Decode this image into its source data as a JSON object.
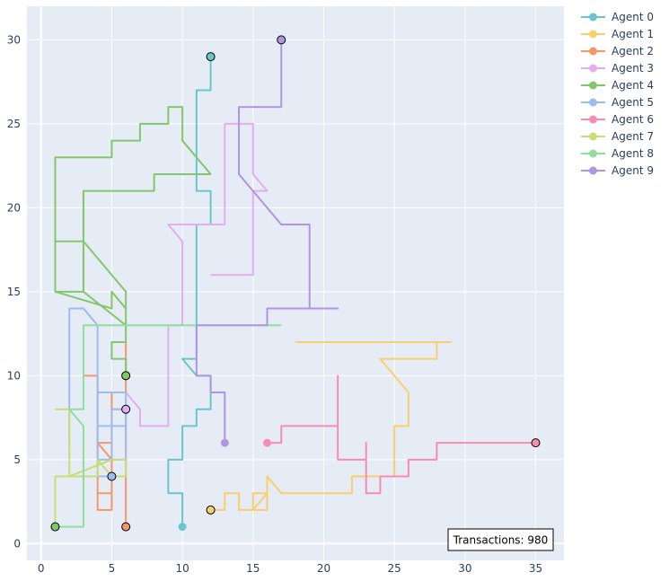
{
  "chart_data": {
    "type": "line",
    "title": "",
    "xlabel": "",
    "ylabel": "",
    "xlim": [
      -1,
      37
    ],
    "ylim": [
      -1,
      32
    ],
    "x_ticks": [
      0,
      5,
      10,
      15,
      20,
      25,
      30,
      35
    ],
    "y_ticks": [
      0,
      5,
      10,
      15,
      20,
      25,
      30
    ],
    "grid": true,
    "legend_position": "top-right",
    "annotation": "Transactions: 980",
    "series": [
      {
        "name": "Agent 0",
        "color": "#6cc5cc",
        "x": [
          10,
          10,
          9,
          9,
          10,
          10,
          11,
          11,
          12,
          12,
          11,
          10,
          11,
          11,
          12,
          12,
          11,
          11,
          12,
          12
        ],
        "y": [
          1,
          3,
          3,
          5,
          5,
          7,
          7,
          8,
          8,
          10,
          10,
          11,
          11,
          19,
          19,
          21,
          21,
          27,
          27,
          29
        ]
      },
      {
        "name": "Agent 1",
        "color": "#f7cf6f",
        "x": [
          12,
          13,
          13,
          14,
          14,
          15,
          15,
          16,
          15,
          16,
          16,
          17,
          22,
          22,
          25,
          25,
          26,
          26,
          24,
          28,
          28,
          29,
          18
        ],
        "y": [
          2,
          2,
          3,
          3,
          2,
          2,
          3,
          3,
          2,
          2,
          4,
          3,
          3,
          4,
          4,
          7,
          7,
          9,
          11,
          11,
          12,
          12,
          12
        ]
      },
      {
        "name": "Agent 2",
        "color": "#f4976a",
        "x": [
          6,
          6,
          5,
          5,
          4,
          4,
          5,
          5,
          4,
          4,
          3,
          4,
          4,
          5,
          5,
          6,
          6
        ],
        "y": [
          1,
          8,
          8,
          2,
          2,
          6,
          6,
          3,
          3,
          10,
          10,
          10,
          6,
          5,
          9,
          9,
          12
        ]
      },
      {
        "name": "Agent 3",
        "color": "#e3adf0",
        "x": [
          6,
          6,
          7,
          7,
          9,
          9,
          10,
          10,
          9,
          13,
          13,
          15,
          15,
          16,
          15,
          15,
          12
        ],
        "y": [
          8,
          9,
          8,
          7,
          7,
          13,
          13,
          18,
          19,
          19,
          25,
          25,
          22,
          21,
          21,
          16,
          16
        ]
      },
      {
        "name": "Agent 4",
        "color": "#84c66c",
        "x": [
          6,
          6,
          5,
          5,
          6,
          6,
          5,
          5,
          1,
          1,
          3,
          6,
          6,
          3,
          3,
          8,
          8,
          12,
          10,
          10,
          9,
          9,
          7,
          7,
          5,
          5,
          1,
          1,
          3,
          3,
          1
        ],
        "y": [
          10,
          11,
          11,
          12,
          12,
          14,
          15,
          14,
          15,
          18,
          18,
          15,
          13,
          15,
          21,
          21,
          22,
          22,
          24,
          26,
          26,
          25,
          25,
          24,
          24,
          23,
          23,
          18,
          18,
          15,
          15
        ]
      },
      {
        "name": "Agent 5",
        "color": "#9dbcf0",
        "x": [
          5,
          4,
          4,
          5,
          6,
          6,
          4,
          4,
          5,
          5,
          6,
          6,
          4,
          4,
          3,
          3,
          2,
          2
        ],
        "y": [
          4,
          4,
          9,
          9,
          9,
          7,
          7,
          5,
          5,
          8,
          8,
          5,
          5,
          13,
          14,
          14,
          14,
          6
        ]
      },
      {
        "name": "Agent 6",
        "color": "#f68cb0",
        "x": [
          16,
          17,
          17,
          21,
          21,
          21,
          21,
          23,
          23,
          23,
          23,
          24,
          24,
          26,
          26,
          28,
          28,
          35
        ],
        "y": [
          6,
          6,
          7,
          7,
          10,
          7,
          5,
          5,
          6,
          5,
          3,
          3,
          4,
          4,
          5,
          5,
          6,
          6
        ]
      },
      {
        "name": "Agent 7",
        "color": "#c9dd74",
        "x": [
          1,
          1,
          4,
          4,
          5,
          6,
          6,
          5,
          2,
          2,
          1
        ],
        "y": [
          1,
          4,
          4,
          5,
          4,
          4,
          5,
          5,
          4,
          8,
          8
        ]
      },
      {
        "name": "Agent 8",
        "color": "#8fdf9f",
        "x": [
          1,
          3,
          3,
          2,
          2,
          3,
          3,
          17
        ],
        "y": [
          1,
          1,
          7,
          8,
          8,
          8,
          13,
          13
        ]
      },
      {
        "name": "Agent 9",
        "color": "#b195e3",
        "x": [
          13,
          13,
          12,
          12,
          11,
          11,
          16,
          16,
          21,
          19,
          19,
          17,
          14,
          14,
          17,
          17
        ],
        "y": [
          6,
          9,
          9,
          10,
          10,
          13,
          13,
          14,
          14,
          14,
          19,
          19,
          22,
          26,
          26,
          30
        ]
      }
    ],
    "end_markers": [
      {
        "series": 0,
        "x": 12,
        "y": 29
      },
      {
        "series": 1,
        "x": 12,
        "y": 2
      },
      {
        "series": 2,
        "x": 6,
        "y": 1
      },
      {
        "series": 3,
        "x": 6,
        "y": 8
      },
      {
        "series": 4,
        "x": 6,
        "y": 10
      },
      {
        "series": 4,
        "x": 1,
        "y": 1
      },
      {
        "series": 5,
        "x": 5,
        "y": 4
      },
      {
        "series": 6,
        "x": 35,
        "y": 6
      },
      {
        "series": 9,
        "x": 17,
        "y": 30
      }
    ]
  }
}
